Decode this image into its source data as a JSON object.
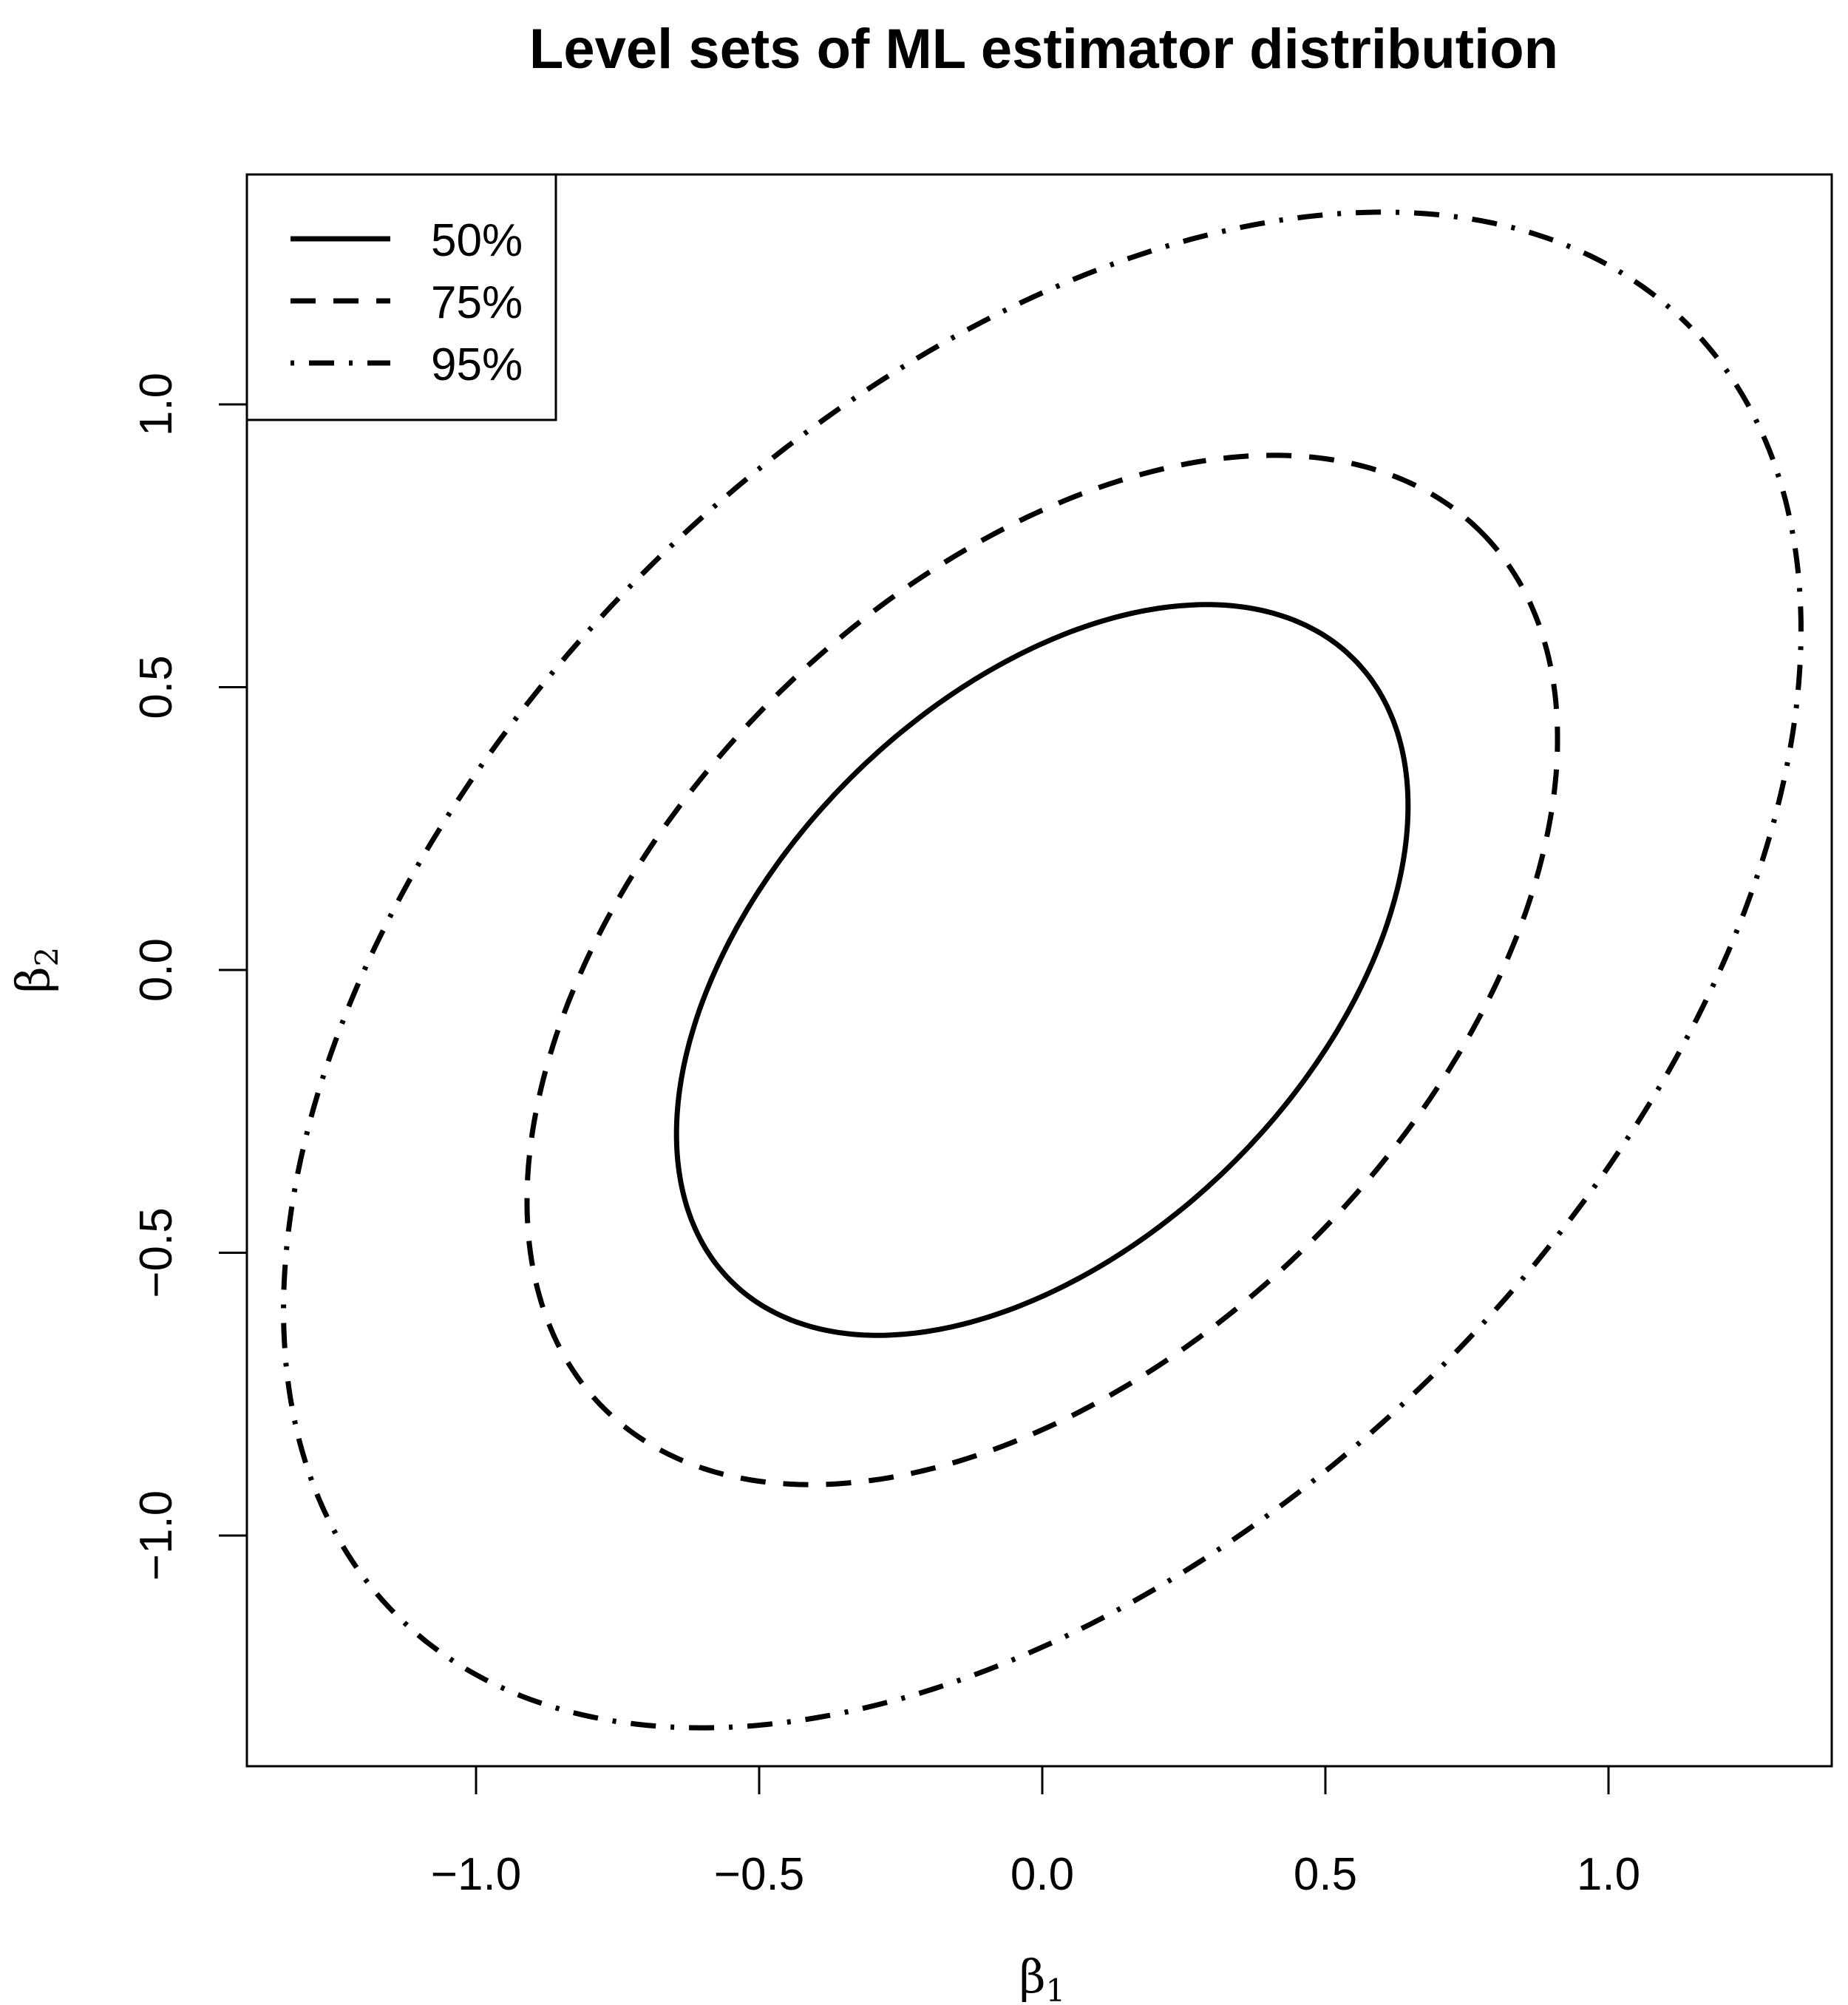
{
  "chart_data": {
    "type": "line",
    "title": "Level sets of ML estimator distribution",
    "xlabel": {
      "base": "β",
      "sub": "1"
    },
    "ylabel": {
      "base": "β",
      "sub": "2"
    },
    "xlim": [
      -1.4,
      1.4
    ],
    "ylim": [
      -1.4,
      1.4
    ],
    "x_ticks": [
      -1.0,
      -0.5,
      0.0,
      0.5,
      1.0
    ],
    "x_tick_labels": [
      "−1.0",
      "−0.5",
      "0.0",
      "0.5",
      "1.0"
    ],
    "y_ticks": [
      -1.0,
      -0.5,
      0.0,
      0.5,
      1.0
    ],
    "y_tick_labels": [
      "−1.0",
      "−0.5",
      "0.0",
      "0.5",
      "1.0"
    ],
    "grid": false,
    "legend_position": "top-left",
    "center": [
      0,
      0
    ],
    "series": [
      {
        "name": "50%",
        "style": "solid",
        "x_extent": 0.646,
        "y_extent": 0.646,
        "x_at_max_y": 0.433
      },
      {
        "name": "75%",
        "style": "dashed",
        "x_extent": 0.91,
        "y_extent": 0.91,
        "x_at_max_y": 0.61
      },
      {
        "name": "95%",
        "style": "dotdash",
        "x_extent": 1.34,
        "y_extent": 1.34,
        "x_at_max_y": 0.898
      }
    ]
  }
}
